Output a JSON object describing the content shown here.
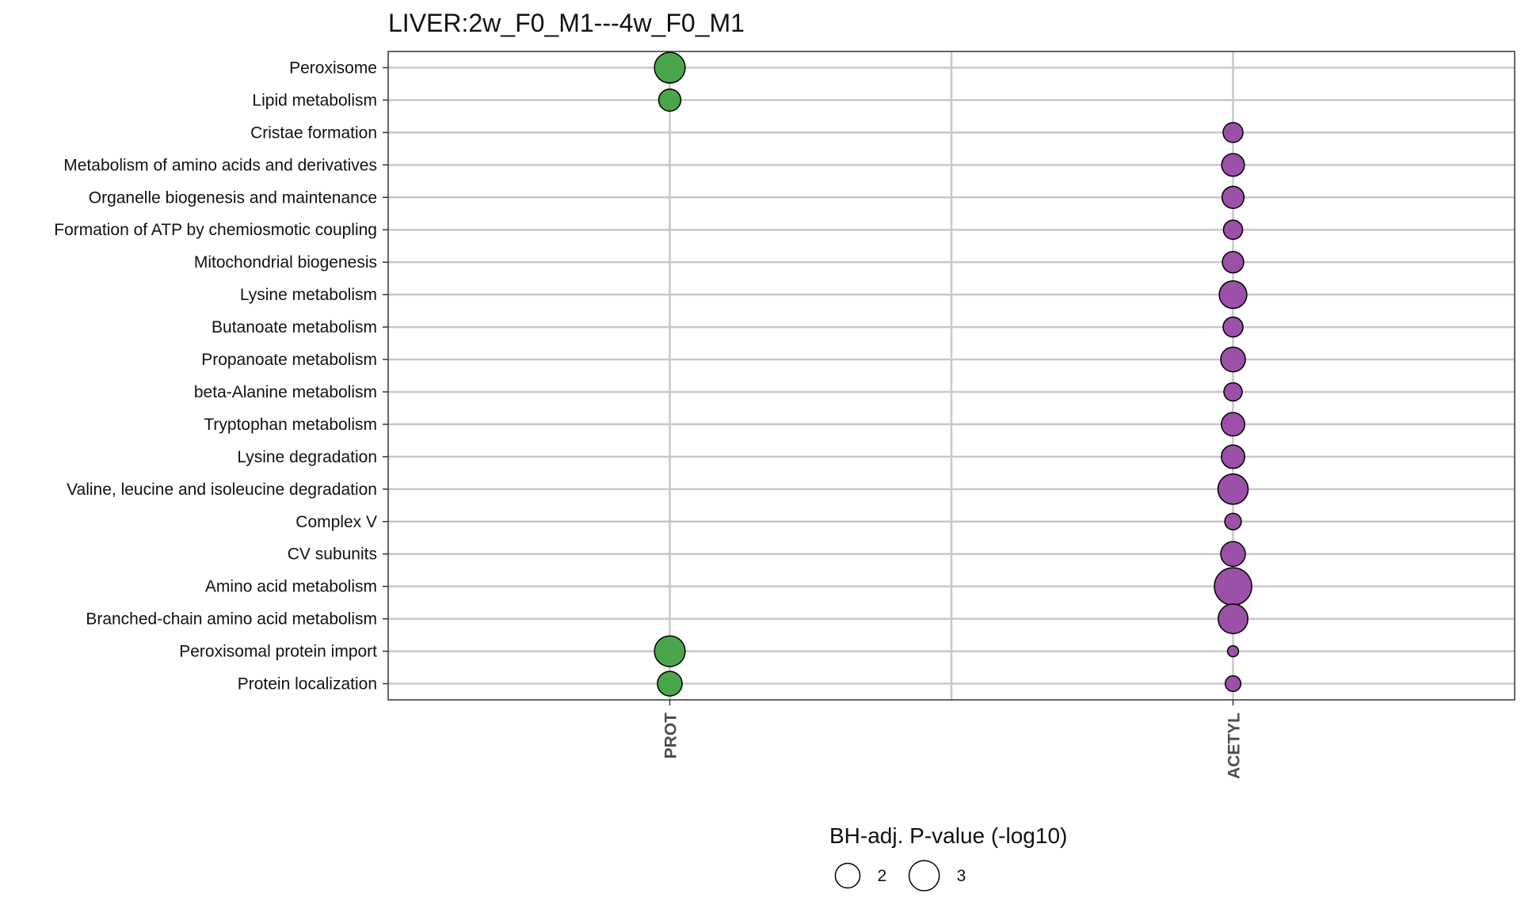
{
  "chart_data": {
    "type": "scatter",
    "title": "LIVER:2w_F0_M1---4w_F0_M1",
    "xlabel": "",
    "ylabel": "",
    "x_categories": [
      "PROT",
      "ACETYL"
    ],
    "y_categories": [
      "Peroxisome",
      "Lipid metabolism",
      "Cristae formation",
      "Metabolism of amino acids and derivatives",
      "Organelle biogenesis and maintenance",
      "Formation of ATP by chemiosmotic coupling",
      "Mitochondrial biogenesis",
      "Lysine metabolism",
      "Butanoate metabolism",
      "Propanoate metabolism",
      "beta-Alanine metabolism",
      "Tryptophan metabolism",
      "Lysine degradation",
      "Valine, leucine and isoleucine degradation",
      "Complex V",
      "CV subunits",
      "Amino acid metabolism",
      "Branched-chain amino acid metabolism",
      "Peroxisomal protein import",
      "Protein localization"
    ],
    "series": [
      {
        "x": "PROT",
        "color": "#4aa64a",
        "points": [
          {
            "y": "Peroxisome",
            "value": 3.1
          },
          {
            "y": "Lipid metabolism",
            "value": 1.6
          },
          {
            "y": "Peroxisomal protein import",
            "value": 3.1
          },
          {
            "y": "Protein localization",
            "value": 2.0
          }
        ]
      },
      {
        "x": "ACETYL",
        "color": "#9b51a8",
        "points": [
          {
            "y": "Cristae formation",
            "value": 1.3
          },
          {
            "y": "Metabolism of amino acids and derivatives",
            "value": 1.7
          },
          {
            "y": "Organelle biogenesis and maintenance",
            "value": 1.6
          },
          {
            "y": "Formation of ATP by chemiosmotic coupling",
            "value": 1.2
          },
          {
            "y": "Mitochondrial biogenesis",
            "value": 1.5
          },
          {
            "y": "Lysine metabolism",
            "value": 2.5
          },
          {
            "y": "Butanoate metabolism",
            "value": 1.3
          },
          {
            "y": "Propanoate metabolism",
            "value": 2.0
          },
          {
            "y": "beta-Alanine metabolism",
            "value": 1.1
          },
          {
            "y": "Tryptophan metabolism",
            "value": 1.8
          },
          {
            "y": "Lysine degradation",
            "value": 1.8
          },
          {
            "y": "Valine, leucine and isoleucine degradation",
            "value": 3.0
          },
          {
            "y": "Complex V",
            "value": 0.9
          },
          {
            "y": "CV subunits",
            "value": 2.0
          },
          {
            "y": "Amino acid metabolism",
            "value": 4.6
          },
          {
            "y": "Branched-chain amino acid metabolism",
            "value": 2.9
          },
          {
            "y": "Peroxisomal protein import",
            "value": 0.4
          },
          {
            "y": "Protein localization",
            "value": 0.8
          }
        ]
      }
    ],
    "size_legend": {
      "title": "BH-adj. P-value (-log10)",
      "entries": [
        {
          "value": 2,
          "label": "2"
        },
        {
          "value": 3,
          "label": "3"
        }
      ]
    },
    "grid": true,
    "legend_position": "bottom",
    "point_outline": "#000000"
  }
}
